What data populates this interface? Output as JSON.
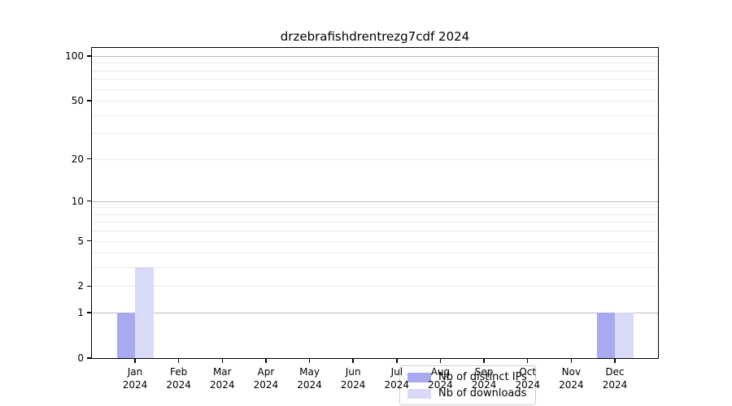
{
  "figure": {
    "title": "drzebrafishdrentrezg7cdf 2024"
  },
  "legend": {
    "items": [
      {
        "label": "Nb of distinct IPs",
        "color": "#a9a9f0"
      },
      {
        "label": "Nb of downloads",
        "color": "#d9d9f8"
      }
    ]
  },
  "colors": {
    "distinct_ips_bar": "#a9a9f0",
    "downloads_bar": "#d9d9f8",
    "major_gridline": "#bcbcbc",
    "minor_gridline": "#ebebeb",
    "axis_frame": "#000000"
  },
  "chart_data": {
    "type": "bar",
    "title": "drzebrafishdrentrezg7cdf 2024",
    "categories": [
      "Jan 2024",
      "Feb 2024",
      "Mar 2024",
      "Apr 2024",
      "May 2024",
      "Jun 2024",
      "Jul 2024",
      "Aug 2024",
      "Sep 2024",
      "Oct 2024",
      "Nov 2024",
      "Dec 2024"
    ],
    "x_tick_months": [
      "Jan",
      "Feb",
      "Mar",
      "Apr",
      "May",
      "Jun",
      "Jul",
      "Aug",
      "Sep",
      "Oct",
      "Nov",
      "Dec"
    ],
    "x_tick_year": "2024",
    "series": [
      {
        "name": "Nb of distinct IPs",
        "color": "#a9a9f0",
        "values": [
          1,
          0,
          0,
          0,
          0,
          0,
          0,
          0,
          0,
          0,
          0,
          1
        ]
      },
      {
        "name": "Nb of downloads",
        "color": "#d9d9f8",
        "values": [
          3,
          0,
          0,
          0,
          0,
          0,
          0,
          0,
          0,
          0,
          0,
          1
        ]
      }
    ],
    "xlabel": "",
    "ylabel": "",
    "y_scale": "log1p",
    "ylim": [
      0,
      113
    ],
    "y_ticks": [
      0,
      1,
      2,
      5,
      10,
      20,
      50,
      100
    ],
    "y_major_gridlines": [
      1,
      10,
      100
    ],
    "y_minor_gridlines": [
      2,
      3,
      4,
      5,
      6,
      7,
      8,
      9,
      20,
      30,
      40,
      50,
      60,
      70,
      80,
      90
    ],
    "grid": "horizontal",
    "legend_position": "lower center"
  }
}
